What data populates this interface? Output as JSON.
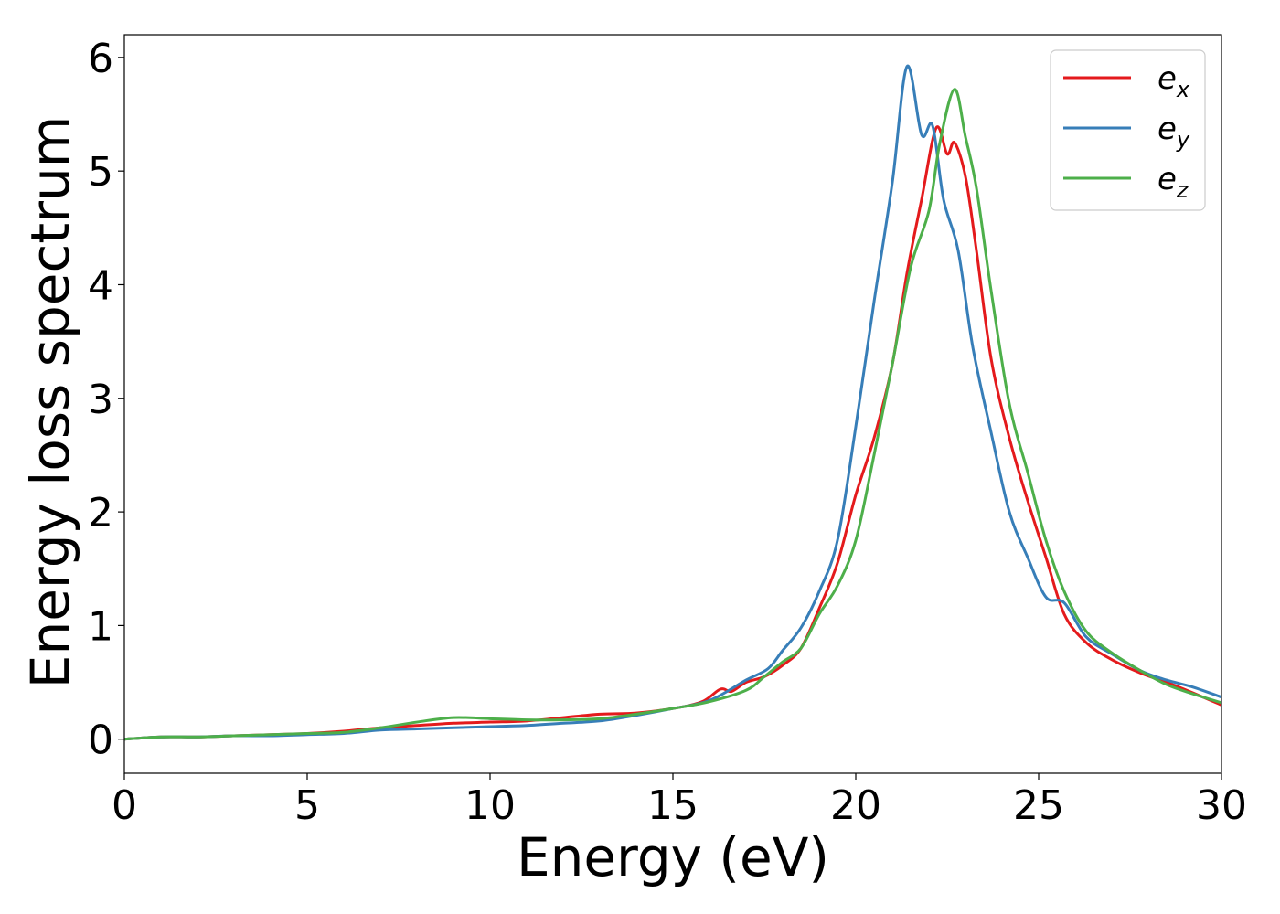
{
  "chart_data": {
    "type": "line",
    "xlabel": "Energy (eV)",
    "ylabel": "Energy loss spectrum",
    "xlim": [
      0,
      30
    ],
    "ylim": [
      -0.3,
      6.2
    ],
    "xticks": [
      0,
      5,
      10,
      15,
      20,
      25,
      30
    ],
    "yticks": [
      0,
      1,
      2,
      3,
      4,
      5,
      6
    ],
    "grid": false,
    "legend_position": "top-right",
    "series": [
      {
        "name": "e_x",
        "label_base": "e",
        "label_sub": "x",
        "color": "#e41a1c",
        "points": [
          [
            0,
            0.0
          ],
          [
            1,
            0.02
          ],
          [
            2,
            0.02
          ],
          [
            3,
            0.03
          ],
          [
            4,
            0.04
          ],
          [
            5,
            0.05
          ],
          [
            6,
            0.07
          ],
          [
            7,
            0.1
          ],
          [
            8,
            0.12
          ],
          [
            9,
            0.14
          ],
          [
            10,
            0.15
          ],
          [
            11,
            0.16
          ],
          [
            12,
            0.19
          ],
          [
            13,
            0.22
          ],
          [
            14,
            0.23
          ],
          [
            15,
            0.27
          ],
          [
            15.8,
            0.33
          ],
          [
            16.3,
            0.44
          ],
          [
            16.6,
            0.42
          ],
          [
            17,
            0.5
          ],
          [
            17.5,
            0.55
          ],
          [
            18,
            0.65
          ],
          [
            18.5,
            0.8
          ],
          [
            19,
            1.15
          ],
          [
            19.5,
            1.55
          ],
          [
            20,
            2.15
          ],
          [
            20.5,
            2.65
          ],
          [
            21,
            3.3
          ],
          [
            21.4,
            4.1
          ],
          [
            21.8,
            4.75
          ],
          [
            22.2,
            5.38
          ],
          [
            22.5,
            5.15
          ],
          [
            22.7,
            5.25
          ],
          [
            23,
            4.95
          ],
          [
            23.3,
            4.3
          ],
          [
            23.7,
            3.35
          ],
          [
            24.2,
            2.65
          ],
          [
            24.7,
            2.1
          ],
          [
            25.2,
            1.6
          ],
          [
            25.7,
            1.1
          ],
          [
            26.3,
            0.85
          ],
          [
            27,
            0.7
          ],
          [
            27.8,
            0.58
          ],
          [
            28.5,
            0.5
          ],
          [
            29.2,
            0.41
          ],
          [
            30,
            0.3
          ]
        ]
      },
      {
        "name": "e_y",
        "label_base": "e",
        "label_sub": "y",
        "color": "#377eb8",
        "points": [
          [
            0,
            0.0
          ],
          [
            1,
            0.02
          ],
          [
            2,
            0.02
          ],
          [
            3,
            0.03
          ],
          [
            4,
            0.03
          ],
          [
            5,
            0.04
          ],
          [
            6,
            0.05
          ],
          [
            7,
            0.08
          ],
          [
            8,
            0.09
          ],
          [
            9,
            0.1
          ],
          [
            10,
            0.11
          ],
          [
            11,
            0.12
          ],
          [
            12,
            0.14
          ],
          [
            13,
            0.16
          ],
          [
            14,
            0.21
          ],
          [
            15,
            0.27
          ],
          [
            16,
            0.34
          ],
          [
            17,
            0.52
          ],
          [
            17.6,
            0.62
          ],
          [
            18,
            0.78
          ],
          [
            18.5,
            0.98
          ],
          [
            19,
            1.3
          ],
          [
            19.5,
            1.75
          ],
          [
            20,
            2.75
          ],
          [
            20.5,
            3.85
          ],
          [
            21,
            4.9
          ],
          [
            21.4,
            5.92
          ],
          [
            21.8,
            5.32
          ],
          [
            22.1,
            5.4
          ],
          [
            22.4,
            4.75
          ],
          [
            22.8,
            4.3
          ],
          [
            23.2,
            3.45
          ],
          [
            23.7,
            2.7
          ],
          [
            24.2,
            2.0
          ],
          [
            24.7,
            1.6
          ],
          [
            25.2,
            1.25
          ],
          [
            25.7,
            1.2
          ],
          [
            26.3,
            0.9
          ],
          [
            27,
            0.75
          ],
          [
            27.8,
            0.6
          ],
          [
            28.5,
            0.52
          ],
          [
            29.2,
            0.46
          ],
          [
            30,
            0.37
          ]
        ]
      },
      {
        "name": "e_z",
        "label_base": "e",
        "label_sub": "z",
        "color": "#4daf4a",
        "points": [
          [
            0,
            0.0
          ],
          [
            1,
            0.02
          ],
          [
            2,
            0.02
          ],
          [
            3,
            0.03
          ],
          [
            4,
            0.04
          ],
          [
            5,
            0.05
          ],
          [
            6,
            0.06
          ],
          [
            7,
            0.1
          ],
          [
            8,
            0.15
          ],
          [
            9,
            0.19
          ],
          [
            10,
            0.18
          ],
          [
            11,
            0.17
          ],
          [
            12,
            0.17
          ],
          [
            13,
            0.18
          ],
          [
            14,
            0.22
          ],
          [
            15,
            0.27
          ],
          [
            16,
            0.33
          ],
          [
            17,
            0.43
          ],
          [
            17.5,
            0.55
          ],
          [
            18,
            0.68
          ],
          [
            18.5,
            0.8
          ],
          [
            19,
            1.1
          ],
          [
            19.5,
            1.35
          ],
          [
            20,
            1.75
          ],
          [
            20.5,
            2.5
          ],
          [
            21,
            3.3
          ],
          [
            21.5,
            4.15
          ],
          [
            22,
            4.65
          ],
          [
            22.3,
            5.25
          ],
          [
            22.7,
            5.72
          ],
          [
            23,
            5.3
          ],
          [
            23.3,
            4.85
          ],
          [
            23.7,
            3.95
          ],
          [
            24.2,
            2.95
          ],
          [
            24.7,
            2.35
          ],
          [
            25.2,
            1.75
          ],
          [
            25.7,
            1.3
          ],
          [
            26.3,
            0.95
          ],
          [
            27,
            0.76
          ],
          [
            27.8,
            0.6
          ],
          [
            28.5,
            0.48
          ],
          [
            29.2,
            0.4
          ],
          [
            30,
            0.32
          ]
        ]
      }
    ]
  }
}
